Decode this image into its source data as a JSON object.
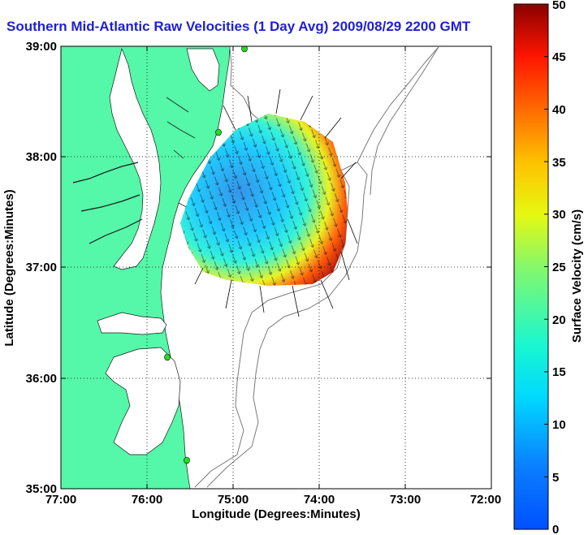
{
  "chart_data": {
    "type": "map",
    "title": "Southern Mid-Atlantic Raw Velocities (1 Day Avg) 2009/08/29 2200 GMT",
    "xlabel": "Longitude (Degrees:Minutes)",
    "ylabel": "Latitude (Degrees:Minutes)",
    "x_ticks": [
      "77:00",
      "76:00",
      "75:00",
      "74:00",
      "73:00",
      "72:00"
    ],
    "y_ticks": [
      "39:00",
      "38:00",
      "37:00",
      "36:00",
      "35:00"
    ],
    "xlim": [
      -77,
      -72
    ],
    "ylim": [
      35,
      39
    ],
    "grid": "dotted",
    "colorbar": {
      "label": "Surface Velocity (cm/s)",
      "ticks": [
        "0",
        "5",
        "10",
        "15",
        "20",
        "25",
        "30",
        "35",
        "40",
        "45",
        "50"
      ],
      "range": [
        0,
        50
      ],
      "colormap": "jet"
    },
    "colors": {
      "land": "#55f7a8",
      "water": "#ffffff",
      "title": "#1f1fd1",
      "stations": "#22dd22"
    },
    "stations": [
      {
        "lon": -75.12,
        "lat": 39.0
      },
      {
        "lon": -75.17,
        "lat": 38.23
      },
      {
        "lon": -75.72,
        "lat": 36.17
      },
      {
        "lon": -75.52,
        "lat": 35.25
      }
    ]
  }
}
